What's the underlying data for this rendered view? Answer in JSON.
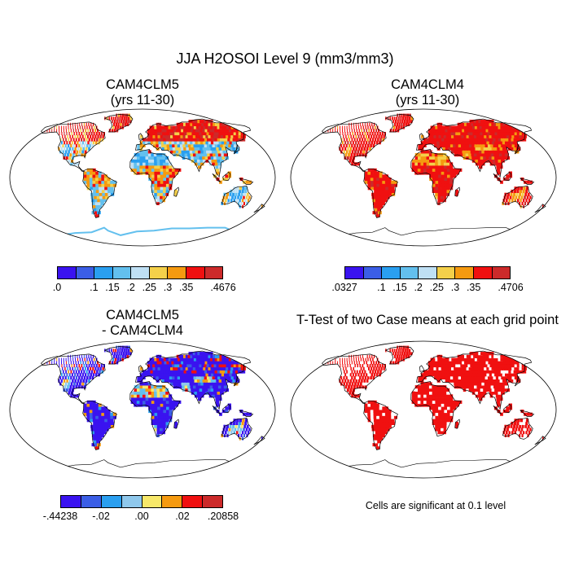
{
  "title": "JJA H2OSOI Level 9 (mm3/mm3)",
  "panels": [
    {
      "title": "CAM4CLM5",
      "subtitle": "(yrs 11-30)"
    },
    {
      "title": "CAM4CLM4",
      "subtitle": "(yrs 11-30)"
    },
    {
      "title": "CAM4CLM5",
      "subtitle": "- CAM4CLM4"
    },
    {
      "title": "T-Test of two Case means at each grid point",
      "subtitle": ""
    }
  ],
  "colorbars": {
    "clm5": {
      "colors": [
        "#3a13f0",
        "#3b5ee6",
        "#2a9ff0",
        "#63c0ee",
        "#bfe0f4",
        "#f4d04a",
        "#f59a10",
        "#f01010",
        "#cc2a2a"
      ],
      "labels": [
        ".0",
        ".1",
        ".15",
        ".2",
        ".25",
        ".3",
        ".35",
        ".4676"
      ]
    },
    "clm4": {
      "colors": [
        "#3a13f0",
        "#3b5ee6",
        "#2a9ff0",
        "#63c0ee",
        "#bfe0f4",
        "#f4d04a",
        "#f59a10",
        "#f01010",
        "#cc2a2a"
      ],
      "labels": [
        ".0327",
        ".1",
        ".15",
        ".2",
        ".25",
        ".3",
        ".35",
        ".4706"
      ]
    },
    "diff": {
      "colors": [
        "#3a13f0",
        "#3b5ee6",
        "#2a9ff0",
        "#8fc8ec",
        "#f7e86a",
        "#f59a10",
        "#f01010",
        "#cc2a2a"
      ],
      "labels": [
        "-.44238",
        "-.02",
        ".00",
        ".02",
        ".20858"
      ]
    }
  },
  "significance_note": "Cells are significant at 0.1 level"
}
